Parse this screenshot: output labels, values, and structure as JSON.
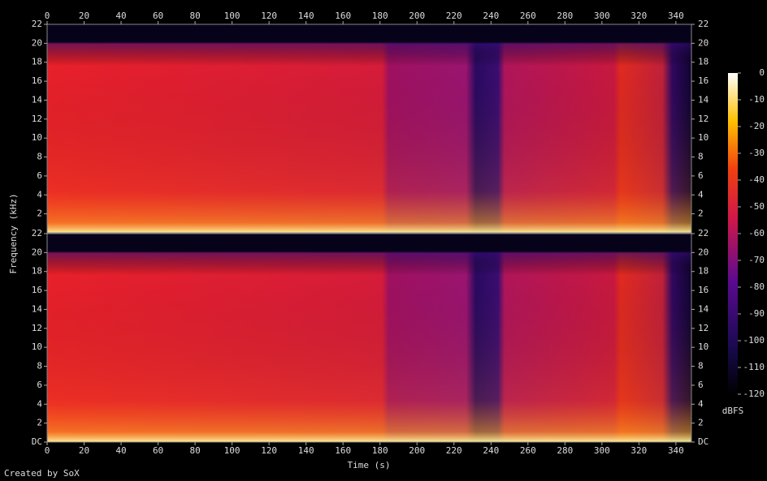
{
  "chart_data": {
    "type": "spectrogram",
    "x_label": "Time (s)",
    "y_label": "Frequency (kHz)",
    "footer": "Created by SoX",
    "xlim": [
      0,
      348.4
    ],
    "xticks": [
      0,
      20,
      40,
      60,
      80,
      100,
      120,
      140,
      160,
      180,
      200,
      220,
      240,
      260,
      280,
      300,
      320,
      340
    ],
    "channels": [
      {
        "ylim": [
          0,
          22
        ],
        "yticks": [
          2,
          4,
          6,
          8,
          10,
          12,
          14,
          16,
          18,
          20,
          22
        ]
      },
      {
        "ylim": [
          0,
          22
        ],
        "yticks": [
          {
            "value": 0,
            "label": "DC"
          },
          2,
          4,
          6,
          8,
          10,
          12,
          14,
          16,
          18,
          20,
          22
        ]
      }
    ],
    "colorbar": {
      "label": "dBFS",
      "lim": [
        -120,
        0
      ],
      "ticks": [
        0,
        -10,
        -20,
        -30,
        -40,
        -50,
        -60,
        -70,
        -80,
        -90,
        -100,
        -110,
        -120
      ]
    }
  }
}
